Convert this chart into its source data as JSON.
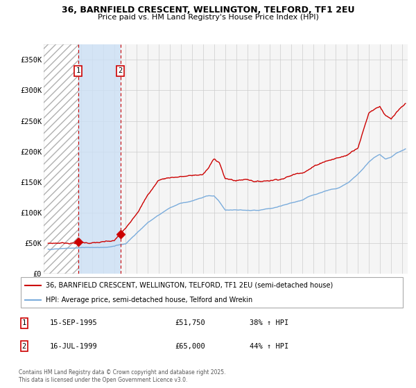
{
  "title": "36, BARNFIELD CRESCENT, WELLINGTON, TELFORD, TF1 2EU",
  "subtitle": "Price paid vs. HM Land Registry's House Price Index (HPI)",
  "legend_line1": "36, BARNFIELD CRESCENT, WELLINGTON, TELFORD, TF1 2EU (semi-detached house)",
  "legend_line2": "HPI: Average price, semi-detached house, Telford and Wrekin",
  "footer": "Contains HM Land Registry data © Crown copyright and database right 2025.\nThis data is licensed under the Open Government Licence v3.0.",
  "purchase1_date": "15-SEP-1995",
  "purchase1_price": 51750,
  "purchase1_pct": "38% ↑ HPI",
  "purchase2_date": "16-JUL-1999",
  "purchase2_price": 65000,
  "purchase2_pct": "44% ↑ HPI",
  "purchase1_year": 1995.71,
  "purchase2_year": 1999.54,
  "ylim": [
    0,
    375000
  ],
  "xlim_start": 1992.6,
  "xlim_end": 2025.5,
  "red_color": "#cc0000",
  "blue_color": "#7aacdc",
  "bg_color": "#ffffff",
  "grid_color": "#cccccc"
}
